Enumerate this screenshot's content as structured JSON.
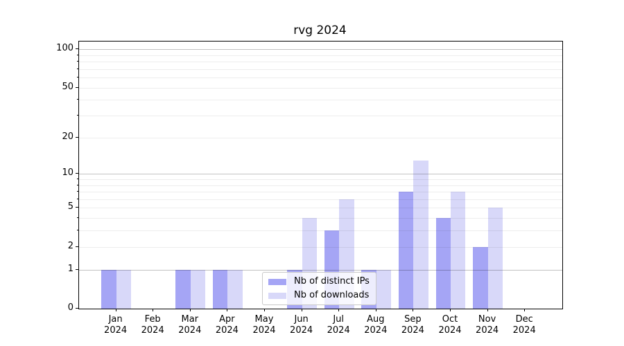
{
  "chart_data": {
    "type": "bar",
    "title": "rvg 2024",
    "categories": [
      "Jan",
      "Feb",
      "Mar",
      "Apr",
      "May",
      "Jun",
      "Jul",
      "Aug",
      "Sep",
      "Oct",
      "Nov",
      "Dec"
    ],
    "year": "2024",
    "series": [
      {
        "name": "Nb of distinct IPs",
        "color": "#a5a5f5",
        "values": [
          1,
          0,
          1,
          1,
          0,
          1,
          3,
          1,
          7,
          4,
          2,
          0
        ]
      },
      {
        "name": "Nb of downloads",
        "color": "#d8d8f9",
        "values": [
          1,
          0,
          1,
          1,
          0,
          4,
          6,
          1,
          13,
          7,
          5,
          0
        ]
      }
    ],
    "xlabel": "",
    "ylabel": "",
    "y_scale": "log1p",
    "ylim": [
      0,
      115
    ],
    "y_tick_labels": [
      0,
      1,
      2,
      5,
      10,
      20,
      50,
      100
    ],
    "y_major_gridlines": [
      1,
      10,
      100
    ],
    "y_minor_gridlines": [
      2,
      3,
      4,
      5,
      6,
      7,
      8,
      9,
      20,
      30,
      40,
      50,
      60,
      70,
      80,
      90
    ],
    "grid": true,
    "grid_above_bars": true,
    "legend_position": "lower center"
  }
}
